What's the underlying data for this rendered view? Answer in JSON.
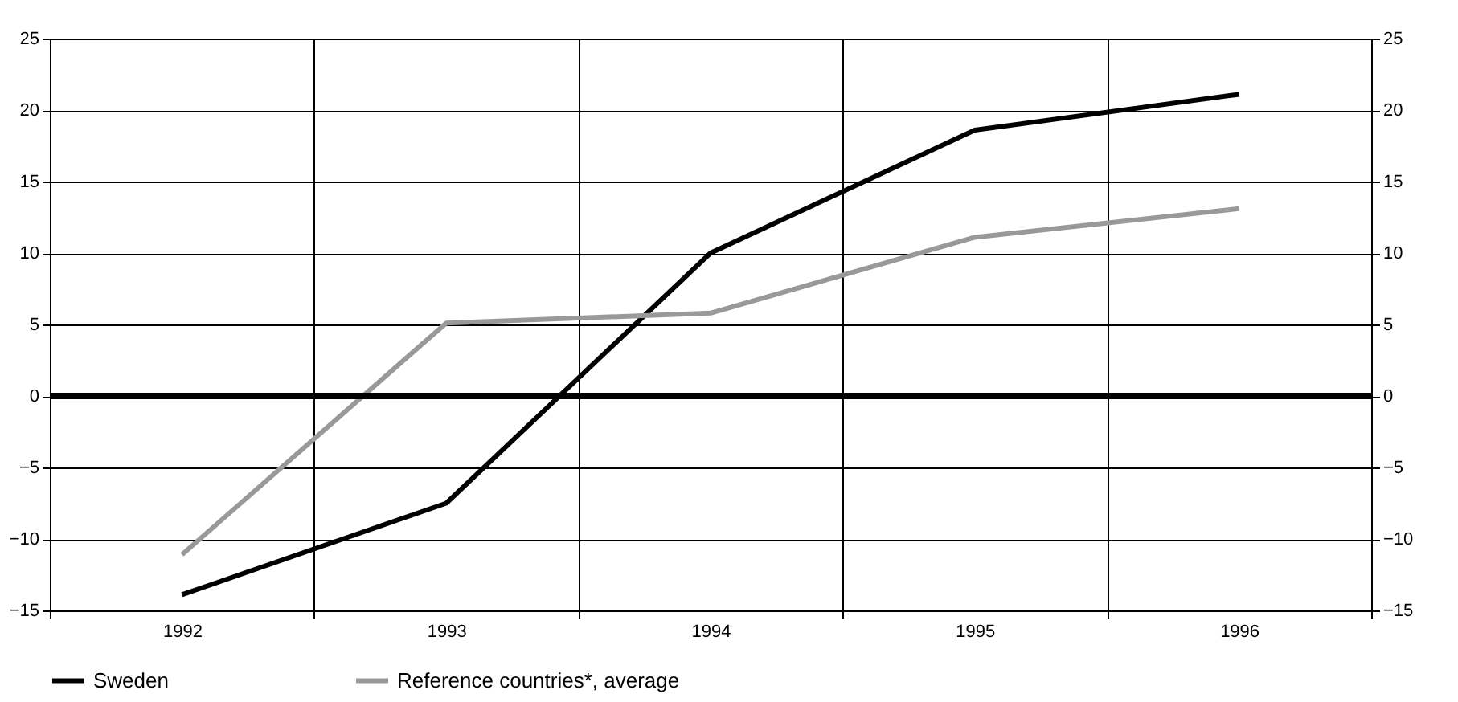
{
  "chart_data": {
    "type": "line",
    "categories": [
      "1992",
      "1993",
      "1994",
      "1995",
      "1996"
    ],
    "series": [
      {
        "name": "Sweden",
        "color": "#000000",
        "values": [
          -13.9,
          -7.5,
          10,
          18.6,
          21.1
        ]
      },
      {
        "name": "Reference countries*, average",
        "color": "#999999",
        "values": [
          -11.1,
          5.1,
          5.8,
          11.1,
          13.1
        ]
      }
    ],
    "ylim": [
      -15,
      25
    ],
    "yticks": [
      {
        "value": -15,
        "label": "−15"
      },
      {
        "value": -10,
        "label": "−10"
      },
      {
        "value": -5,
        "label": "−5"
      },
      0,
      5,
      10,
      15,
      20,
      25
    ],
    "y2lim": [
      -15,
      25
    ],
    "y2ticks": [
      {
        "value": -15,
        "label": "−15"
      },
      {
        "value": -10,
        "label": "−10"
      },
      {
        "value": -5,
        "label": "−5"
      },
      0,
      5,
      10,
      15,
      20,
      25
    ],
    "ref_lines": [
      {
        "axis": "y",
        "value": 0,
        "color": "#000000"
      }
    ],
    "grid": true,
    "legend": "bottom left",
    "marker": "none",
    "line_style": "solid"
  }
}
